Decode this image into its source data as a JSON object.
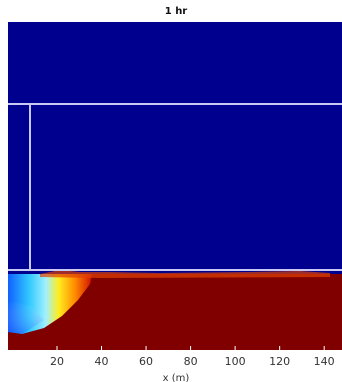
{
  "chart_data": {
    "type": "heatmap",
    "title": "1 hr",
    "xlabel": "x (m)",
    "xlim": [
      -2,
      148
    ],
    "xticks": [
      20,
      40,
      60,
      80,
      100,
      120,
      140
    ]
  }
}
